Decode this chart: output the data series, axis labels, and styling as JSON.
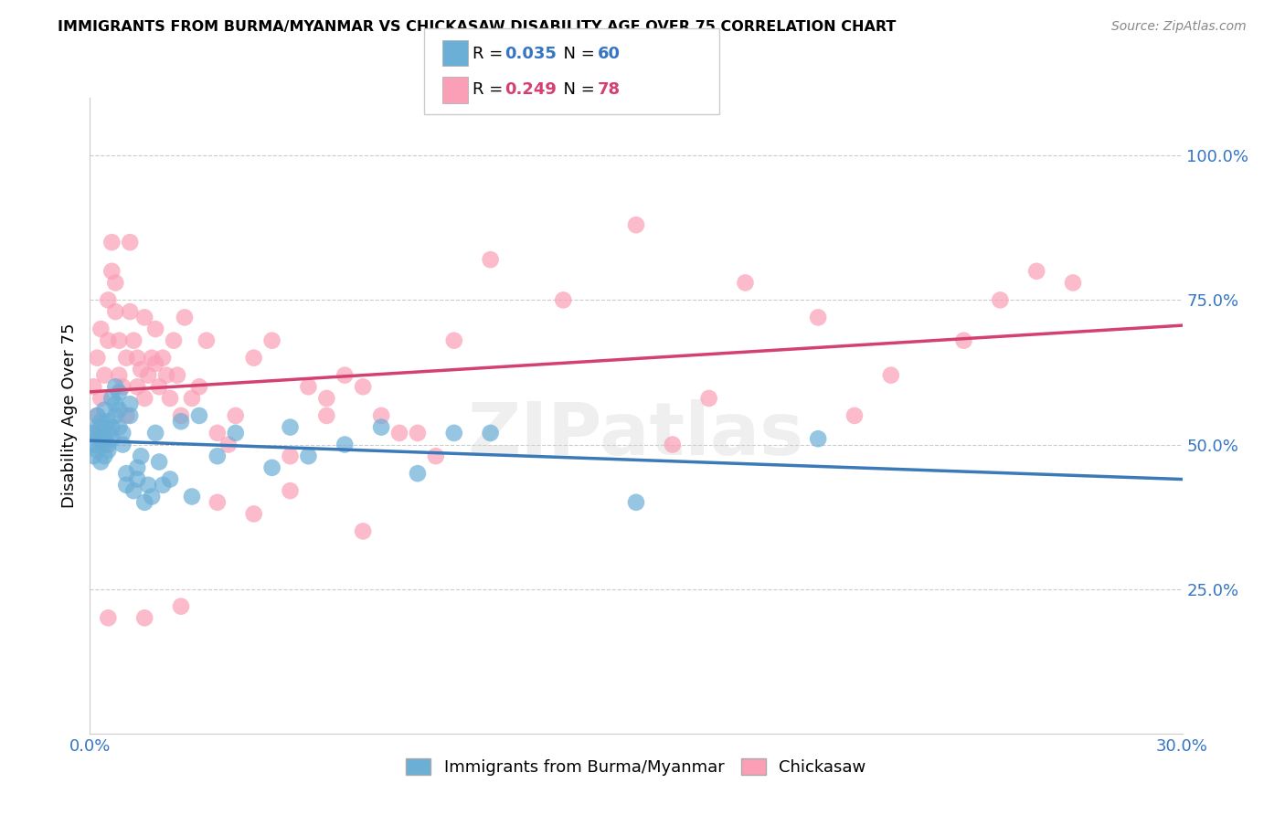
{
  "title": "IMMIGRANTS FROM BURMA/MYANMAR VS CHICKASAW DISABILITY AGE OVER 75 CORRELATION CHART",
  "source": "Source: ZipAtlas.com",
  "ylabel": "Disability Age Over 75",
  "xlim": [
    0.0,
    0.3
  ],
  "ylim": [
    0.0,
    1.1
  ],
  "yticks": [
    0.25,
    0.5,
    0.75,
    1.0
  ],
  "ytick_labels": [
    "25.0%",
    "50.0%",
    "75.0%",
    "100.0%"
  ],
  "xticks": [
    0.0,
    0.05,
    0.1,
    0.15,
    0.2,
    0.25,
    0.3
  ],
  "xtick_labels": [
    "0.0%",
    "",
    "",
    "",
    "",
    "",
    "30.0%"
  ],
  "blue_R": 0.035,
  "blue_N": 60,
  "pink_R": 0.249,
  "pink_N": 78,
  "blue_color": "#6baed6",
  "pink_color": "#fa9fb5",
  "blue_line_color": "#3a7ab8",
  "pink_line_color": "#d44070",
  "watermark": "ZIPatlas",
  "legend_label_blue": "Immigrants from Burma/Myanmar",
  "legend_label_pink": "Chickasaw",
  "blue_x": [
    0.001,
    0.001,
    0.001,
    0.002,
    0.002,
    0.002,
    0.002,
    0.003,
    0.003,
    0.003,
    0.003,
    0.004,
    0.004,
    0.004,
    0.004,
    0.005,
    0.005,
    0.005,
    0.005,
    0.006,
    0.006,
    0.006,
    0.007,
    0.007,
    0.007,
    0.008,
    0.008,
    0.008,
    0.009,
    0.009,
    0.01,
    0.01,
    0.011,
    0.011,
    0.012,
    0.013,
    0.013,
    0.014,
    0.015,
    0.016,
    0.017,
    0.018,
    0.019,
    0.02,
    0.022,
    0.025,
    0.028,
    0.03,
    0.035,
    0.04,
    0.05,
    0.055,
    0.06,
    0.07,
    0.08,
    0.09,
    0.1,
    0.11,
    0.15,
    0.2
  ],
  "blue_y": [
    0.5,
    0.52,
    0.48,
    0.51,
    0.53,
    0.49,
    0.55,
    0.5,
    0.52,
    0.54,
    0.47,
    0.51,
    0.53,
    0.48,
    0.56,
    0.5,
    0.52,
    0.54,
    0.49,
    0.51,
    0.53,
    0.58,
    0.6,
    0.57,
    0.55,
    0.59,
    0.56,
    0.53,
    0.52,
    0.5,
    0.45,
    0.43,
    0.57,
    0.55,
    0.42,
    0.46,
    0.44,
    0.48,
    0.4,
    0.43,
    0.41,
    0.52,
    0.47,
    0.43,
    0.44,
    0.54,
    0.41,
    0.55,
    0.48,
    0.52,
    0.46,
    0.53,
    0.48,
    0.5,
    0.53,
    0.45,
    0.52,
    0.52,
    0.4,
    0.51
  ],
  "pink_x": [
    0.001,
    0.001,
    0.002,
    0.002,
    0.003,
    0.003,
    0.004,
    0.004,
    0.005,
    0.005,
    0.006,
    0.006,
    0.007,
    0.007,
    0.008,
    0.008,
    0.009,
    0.01,
    0.01,
    0.011,
    0.011,
    0.012,
    0.013,
    0.013,
    0.014,
    0.015,
    0.015,
    0.016,
    0.017,
    0.018,
    0.018,
    0.019,
    0.02,
    0.021,
    0.022,
    0.023,
    0.024,
    0.025,
    0.026,
    0.028,
    0.03,
    0.032,
    0.035,
    0.038,
    0.04,
    0.045,
    0.05,
    0.055,
    0.06,
    0.065,
    0.07,
    0.075,
    0.08,
    0.09,
    0.1,
    0.11,
    0.13,
    0.15,
    0.16,
    0.17,
    0.18,
    0.2,
    0.21,
    0.22,
    0.24,
    0.25,
    0.26,
    0.27,
    0.005,
    0.015,
    0.025,
    0.035,
    0.045,
    0.055,
    0.065,
    0.075,
    0.085,
    0.095
  ],
  "pink_y": [
    0.52,
    0.6,
    0.55,
    0.65,
    0.7,
    0.58,
    0.62,
    0.5,
    0.68,
    0.75,
    0.8,
    0.85,
    0.73,
    0.78,
    0.62,
    0.68,
    0.6,
    0.55,
    0.65,
    0.85,
    0.73,
    0.68,
    0.6,
    0.65,
    0.63,
    0.58,
    0.72,
    0.62,
    0.65,
    0.64,
    0.7,
    0.6,
    0.65,
    0.62,
    0.58,
    0.68,
    0.62,
    0.55,
    0.72,
    0.58,
    0.6,
    0.68,
    0.52,
    0.5,
    0.55,
    0.65,
    0.68,
    0.48,
    0.6,
    0.58,
    0.62,
    0.35,
    0.55,
    0.52,
    0.68,
    0.82,
    0.75,
    0.88,
    0.5,
    0.58,
    0.78,
    0.72,
    0.55,
    0.62,
    0.68,
    0.75,
    0.8,
    0.78,
    0.2,
    0.2,
    0.22,
    0.4,
    0.38,
    0.42,
    0.55,
    0.6,
    0.52,
    0.48
  ]
}
